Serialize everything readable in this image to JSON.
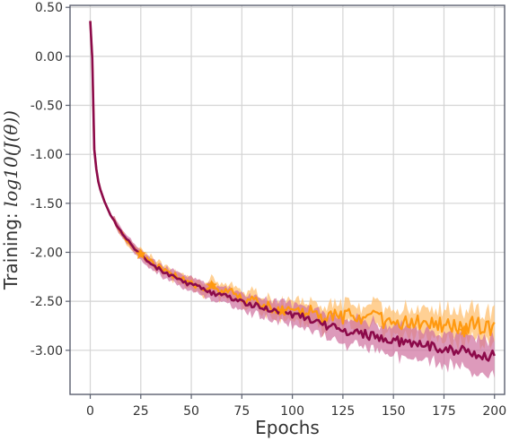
{
  "chart_data": {
    "type": "line",
    "xlabel": "Epochs",
    "ylabel_prefix": "Training: ",
    "ylabel_math": "log10(J(θ))",
    "xlim": [
      -10,
      205
    ],
    "ylim": [
      -3.45,
      0.52
    ],
    "xticks": [
      0,
      25,
      50,
      75,
      100,
      125,
      150,
      175,
      200
    ],
    "yticks": [
      0.5,
      0.0,
      -0.5,
      -1.0,
      -1.5,
      -2.0,
      -2.5,
      -3.0
    ],
    "ytick_labels": [
      "0.50",
      "0.00",
      "-0.50",
      "-1.00",
      "-1.50",
      "-2.00",
      "-2.50",
      "-3.00"
    ],
    "grid": true,
    "series": [
      {
        "color": "#ff9910",
        "band_color": "#ffc070",
        "marker": "star",
        "x": [
          0,
          1,
          2,
          3,
          4,
          5,
          7,
          10,
          15,
          20,
          25,
          30,
          35,
          40,
          45,
          50,
          55,
          60,
          65,
          70,
          75,
          80,
          85,
          90,
          95,
          100,
          105,
          110,
          115,
          120,
          125,
          130,
          135,
          140,
          145,
          150,
          155,
          160,
          165,
          170,
          175,
          180,
          185,
          190,
          195,
          200
        ],
        "y": [
          0.36,
          -0.02,
          -0.95,
          -1.15,
          -1.28,
          -1.36,
          -1.48,
          -1.62,
          -1.78,
          -1.92,
          -2.02,
          -2.1,
          -2.16,
          -2.22,
          -2.28,
          -2.32,
          -2.36,
          -2.34,
          -2.42,
          -2.4,
          -2.48,
          -2.5,
          -2.52,
          -2.58,
          -2.6,
          -2.62,
          -2.63,
          -2.6,
          -2.68,
          -2.64,
          -2.66,
          -2.62,
          -2.7,
          -2.65,
          -2.7,
          -2.68,
          -2.74,
          -2.7,
          -2.72,
          -2.7,
          -2.76,
          -2.74,
          -2.8,
          -2.72,
          -2.78,
          -2.76
        ]
      },
      {
        "color": "#8c0a4a",
        "band_color": "#cf6f9e",
        "marker": "none",
        "x": [
          0,
          1,
          2,
          3,
          4,
          5,
          7,
          10,
          15,
          20,
          25,
          30,
          35,
          40,
          45,
          50,
          55,
          60,
          65,
          70,
          75,
          80,
          85,
          90,
          95,
          100,
          105,
          110,
          115,
          120,
          125,
          130,
          135,
          140,
          145,
          150,
          155,
          160,
          165,
          170,
          175,
          180,
          185,
          190,
          195,
          200
        ],
        "y": [
          0.36,
          -0.02,
          -0.95,
          -1.15,
          -1.28,
          -1.36,
          -1.48,
          -1.62,
          -1.78,
          -1.92,
          -2.04,
          -2.12,
          -2.18,
          -2.24,
          -2.29,
          -2.33,
          -2.37,
          -2.42,
          -2.44,
          -2.46,
          -2.5,
          -2.53,
          -2.56,
          -2.59,
          -2.62,
          -2.64,
          -2.66,
          -2.72,
          -2.74,
          -2.76,
          -2.8,
          -2.82,
          -2.83,
          -2.86,
          -2.88,
          -2.9,
          -2.92,
          -2.92,
          -2.94,
          -2.96,
          -2.98,
          -3.0,
          -3.0,
          -3.04,
          -3.06,
          -3.04
        ]
      }
    ]
  }
}
